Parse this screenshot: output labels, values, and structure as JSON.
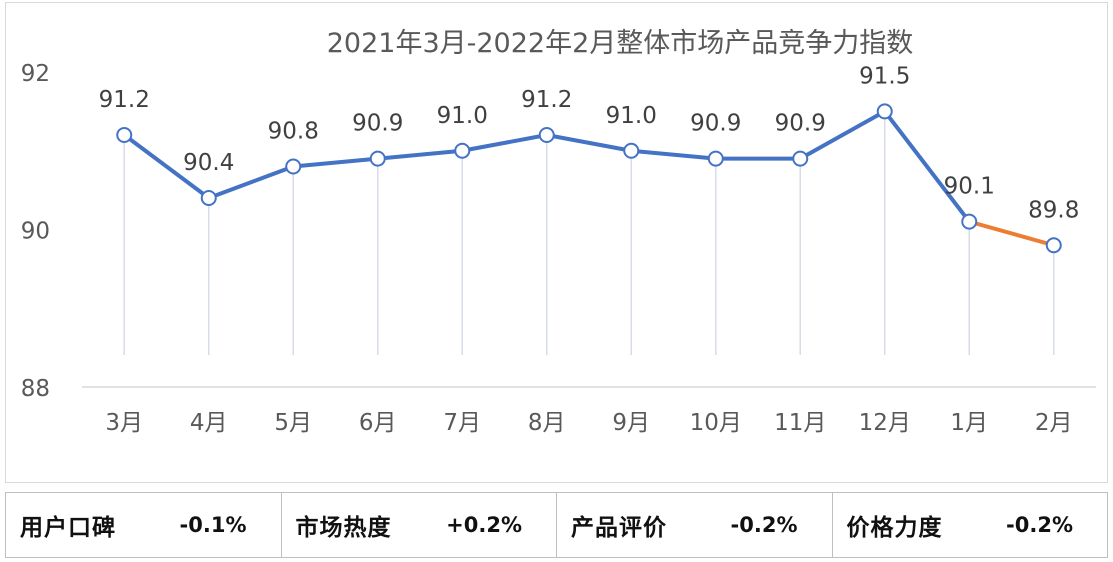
{
  "chart_data": {
    "type": "line",
    "title": "2021年3月-2022年2月整体市场产品竞争力指数",
    "categories": [
      "3月",
      "4月",
      "5月",
      "6月",
      "7月",
      "8月",
      "9月",
      "10月",
      "11月",
      "12月",
      "1月",
      "2月"
    ],
    "series": [
      {
        "values": [
          91.2,
          90.4,
          90.8,
          90.9,
          91.0,
          91.2,
          91.0,
          90.9,
          90.9,
          91.5,
          90.1,
          89.8
        ],
        "color": "#4472c4"
      }
    ],
    "data_labels": [
      "91.2",
      "90.4",
      "90.8",
      "90.9",
      "91.0",
      "91.2",
      "91.0",
      "90.9",
      "90.9",
      "91.5",
      "90.1",
      "89.8"
    ],
    "highlight_last_segment_color": "#ed7d31",
    "ylim": [
      88,
      92
    ],
    "yticks": [
      "88",
      "90",
      "92"
    ],
    "xlabel": "",
    "ylabel": "",
    "grid": false,
    "drop_lines": true
  },
  "stats": [
    {
      "label": "用户口碑",
      "value": "-0.1%"
    },
    {
      "label": "市场热度",
      "value": "+0.2%"
    },
    {
      "label": "产品评价",
      "value": "-0.2%"
    },
    {
      "label": "价格力度",
      "value": "-0.2%"
    }
  ]
}
